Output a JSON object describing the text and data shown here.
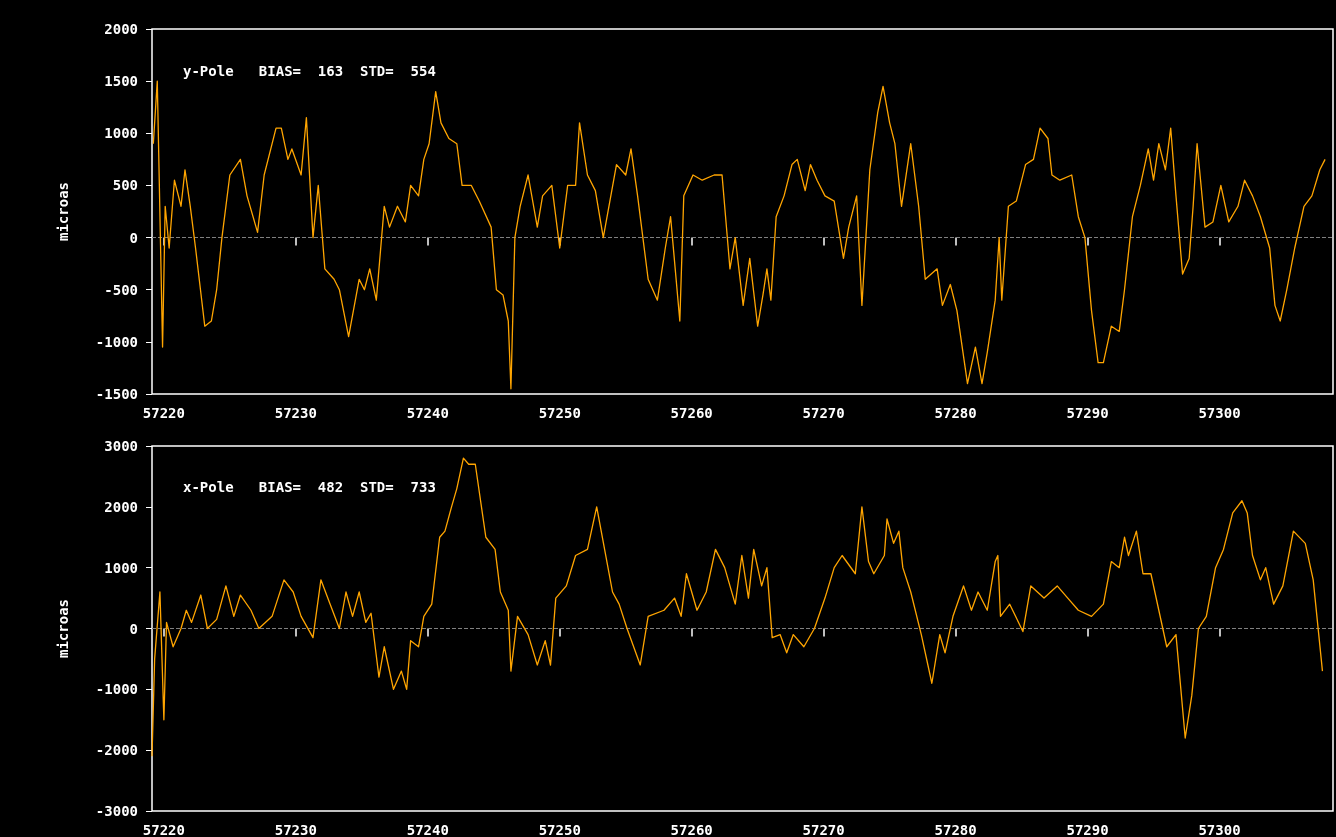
{
  "chart_data": [
    {
      "type": "line",
      "title": "y-Pole   BIAS=  163  STD=  554",
      "ylabel": "microas",
      "color": "#ffa500",
      "x": [
        57219.2,
        57219.5,
        57219.9,
        57220.1,
        57220.4,
        57220.8,
        57221.3,
        57221.6,
        57222,
        57222.4,
        57223.1,
        57223.6,
        57224,
        57224.4,
        57225,
        57225.8,
        57226.3,
        57227.1,
        57227.6,
        57228.5,
        57228.9,
        57229.4,
        57229.7,
        57230.4,
        57230.8,
        57231.3,
        57231.7,
        57232.2,
        57232.9,
        57233.3,
        57234,
        57234.8,
        57235.2,
        57235.6,
        57236.1,
        57236.7,
        57237.1,
        57237.7,
        57238.3,
        57238.7,
        57239.3,
        57239.7,
        57240.1,
        57240.6,
        57241,
        57241.6,
        57242.2,
        57242.6,
        57243.3,
        57243.9,
        57244.8,
        57245.2,
        57245.7,
        57246.1,
        57246.3,
        57246.6,
        57247,
        57247.6,
        57248.3,
        57248.7,
        57249.4,
        57250,
        57250.6,
        57251.2,
        57251.5,
        57252.1,
        57252.7,
        57253.3,
        57254.3,
        57255,
        57255.4,
        57255.9,
        57256.7,
        57257.4,
        57258,
        57258.4,
        57259.1,
        57259.4,
        57260.1,
        57260.8,
        57261.7,
        57262.3,
        57262.9,
        57263.3,
        57263.9,
        57264.4,
        57265,
        57265.4,
        57265.7,
        57266,
        57266.4,
        57267,
        57267.6,
        57268,
        57268.6,
        57269,
        57269.5,
        57270.1,
        57270.8,
        57271.5,
        57271.9,
        57272.5,
        57272.9,
        57273.5,
        57274.1,
        57274.5,
        57275,
        57275.4,
        57275.9,
        57276.6,
        57277.2,
        57277.7,
        57278.6,
        57279,
        57279.6,
        57280.1,
        57280.9,
        57281.5,
        57282,
        57282.4,
        57283,
        57283.3,
        57283.5,
        57284,
        57284.6,
        57285.3,
        57285.9,
        57286.4,
        57287,
        57287.3,
        57287.9,
        57288.8,
        57289.3,
        57289.8,
        57290.3,
        57290.8,
        57291.2,
        57291.8,
        57292.4,
        57292.8,
        57293.4,
        57294,
        57294.6,
        57295,
        57295.4,
        57295.9,
        57296.3,
        57296.7,
        57297.2,
        57297.7,
        57298,
        57298.3,
        57298.9,
        57299.5,
        57300.1,
        57300.7,
        57301.4,
        57301.9,
        57302.5,
        57303.1,
        57303.8,
        57304.2,
        57304.6,
        57305.1,
        57305.7,
        57306.4,
        57307,
        57307.6,
        57308
      ],
      "values": [
        900,
        1500,
        -1050,
        300,
        -100,
        550,
        300,
        650,
        300,
        -100,
        -850,
        -800,
        -500,
        0,
        600,
        750,
        400,
        50,
        600,
        1050,
        1050,
        750,
        850,
        600,
        1150,
        0,
        500,
        -300,
        -400,
        -500,
        -950,
        -400,
        -500,
        -300,
        -600,
        300,
        100,
        300,
        150,
        500,
        400,
        750,
        900,
        1400,
        1100,
        950,
        900,
        500,
        500,
        350,
        100,
        -500,
        -550,
        -800,
        -1450,
        0,
        300,
        600,
        100,
        400,
        500,
        -100,
        500,
        500,
        1100,
        600,
        450,
        0,
        700,
        600,
        850,
        400,
        -400,
        -600,
        -100,
        200,
        -800,
        400,
        600,
        550,
        600,
        600,
        -300,
        0,
        -650,
        -200,
        -850,
        -550,
        -300,
        -600,
        200,
        400,
        700,
        750,
        450,
        700,
        550,
        400,
        350,
        -200,
        100,
        400,
        -650,
        650,
        1200,
        1450,
        1100,
        900,
        300,
        900,
        300,
        -400,
        -300,
        -650,
        -450,
        -700,
        -1400,
        -1050,
        -1400,
        -1100,
        -600,
        0,
        -600,
        300,
        350,
        700,
        750,
        1050,
        950,
        600,
        550,
        600,
        200,
        0,
        -700,
        -1200,
        -1200,
        -850,
        -900,
        -500,
        200,
        500,
        850,
        550,
        900,
        650,
        1050,
        400,
        -350,
        -200,
        300,
        900,
        100,
        150,
        500,
        150,
        300,
        550,
        400,
        200,
        -100,
        -650,
        -800,
        -500,
        -100,
        300,
        400,
        650,
        750
      ],
      "xlim": [
        57219.1,
        57308.6
      ],
      "xticks": [
        57220,
        57230,
        57240,
        57250,
        57260,
        57270,
        57280,
        57290,
        57300
      ],
      "ylim": [
        -1500,
        2000
      ],
      "yticks": [
        -1500,
        -1000,
        -500,
        0,
        500,
        1000,
        1500,
        2000
      ],
      "ref_lines": [
        {
          "axis": "y",
          "value": 0,
          "color": "#808080",
          "line_style": "dashed"
        }
      ]
    },
    {
      "type": "line",
      "title": "x-Pole   BIAS=  482  STD=  733",
      "ylabel": "microas",
      "color": "#ffa500",
      "x": [
        57219.1,
        57219.3,
        57219.7,
        57220,
        57220.2,
        57220.7,
        57221.3,
        57221.7,
        57222.1,
        57222.8,
        57223.3,
        57224,
        57224.7,
        57225.3,
        57225.8,
        57226.6,
        57227.2,
        57228.2,
        57229.1,
        57229.8,
        57230.4,
        57231.3,
        57231.9,
        57232.6,
        57233.3,
        57233.8,
        57234.3,
        57234.8,
        57235.3,
        57235.7,
        57236.3,
        57236.7,
        57237.4,
        57238,
        57238.4,
        57238.7,
        57239.3,
        57239.7,
        57240.3,
        57240.9,
        57241.3,
        57241.8,
        57242.2,
        57242.7,
        57243.1,
        57243.6,
        57244.4,
        57245.1,
        57245.5,
        57246.1,
        57246.3,
        57246.8,
        57247.6,
        57248.3,
        57248.9,
        57249.3,
        57249.7,
        57250.5,
        57251.2,
        57252.1,
        57252.8,
        57253.4,
        57254,
        57254.5,
        57255.1,
        57256.1,
        57256.7,
        57257.9,
        57258.7,
        57259.2,
        57259.6,
        57260.4,
        57261.1,
        57261.8,
        57262.5,
        57263.3,
        57263.8,
        57264.3,
        57264.7,
        57265.3,
        57265.7,
        57266.1,
        57266.7,
        57267.2,
        57267.7,
        57268.5,
        57269.3,
        57270.1,
        57270.8,
        57271.4,
        57272.4,
        57272.9,
        57273.4,
        57273.8,
        57274.6,
        57274.8,
        57275.3,
        57275.7,
        57276,
        57276.6,
        57277.4,
        57278.2,
        57278.8,
        57279.2,
        57279.8,
        57280.6,
        57281.2,
        57281.7,
        57282.4,
        57283,
        57283.2,
        57283.4,
        57284.1,
        57285.1,
        57285.7,
        57286.7,
        57287.7,
        57288.5,
        57289.3,
        57290.3,
        57291.2,
        57291.8,
        57292.4,
        57292.8,
        57293.1,
        57293.7,
        57294.2,
        57294.8,
        57295.4,
        57296,
        57296.7,
        57297.4,
        57297.9,
        57298.4,
        57299,
        57299.7,
        57300.3,
        57301,
        57301.7,
        57302.1,
        57302.5,
        57303.1,
        57303.5,
        57304.1,
        57304.8,
        57305.6,
        57306.5,
        57307.1,
        57307.8
      ],
      "values": [
        -2100,
        -500,
        600,
        -1500,
        100,
        -300,
        0,
        300,
        100,
        550,
        0,
        150,
        700,
        200,
        550,
        300,
        0,
        200,
        800,
        600,
        200,
        -150,
        800,
        400,
        0,
        600,
        200,
        600,
        100,
        250,
        -800,
        -300,
        -1000,
        -700,
        -1000,
        -200,
        -300,
        200,
        400,
        1500,
        1600,
        2000,
        2300,
        2800,
        2700,
        2700,
        1500,
        1300,
        600,
        300,
        -700,
        200,
        -100,
        -600,
        -200,
        -600,
        500,
        700,
        1200,
        1300,
        2000,
        1300,
        600,
        400,
        0,
        -600,
        200,
        300,
        500,
        200,
        900,
        300,
        600,
        1300,
        1000,
        400,
        1200,
        500,
        1300,
        700,
        1000,
        -150,
        -100,
        -400,
        -100,
        -300,
        0,
        500,
        1000,
        1200,
        900,
        2000,
        1100,
        900,
        1200,
        1800,
        1400,
        1600,
        1000,
        600,
        -100,
        -900,
        -100,
        -400,
        200,
        700,
        300,
        600,
        300,
        1100,
        1200,
        200,
        400,
        -50,
        700,
        500,
        700,
        500,
        300,
        200,
        400,
        1100,
        1000,
        1500,
        1200,
        1600,
        900,
        900,
        300,
        -300,
        -100,
        -1800,
        -1100,
        0,
        200,
        1000,
        1300,
        1900,
        2100,
        1900,
        1200,
        800,
        1000,
        400,
        700,
        1600,
        1400,
        800,
        -700
      ],
      "xlim": [
        57219.1,
        57308.6
      ],
      "xticks": [
        57220,
        57230,
        57240,
        57250,
        57260,
        57270,
        57280,
        57290,
        57300
      ],
      "ylim": [
        -3000,
        3000
      ],
      "yticks": [
        -3000,
        -2000,
        -1000,
        0,
        1000,
        2000,
        3000
      ],
      "ref_lines": [
        {
          "axis": "y",
          "value": 0,
          "color": "#808080",
          "line_style": "dashed"
        }
      ]
    }
  ]
}
